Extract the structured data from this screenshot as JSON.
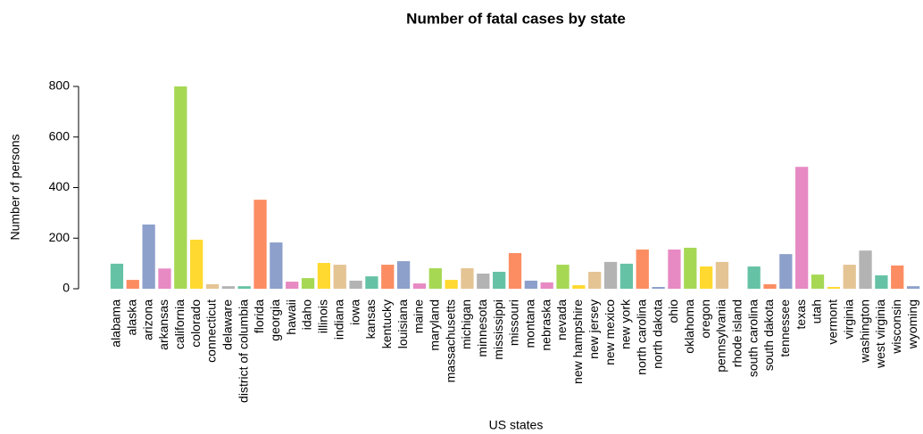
{
  "chart_data": {
    "type": "bar",
    "title": "Number of fatal cases by state",
    "x_label": "US states",
    "y_label": "Number of persons",
    "categories": [
      "alabama",
      "alaska",
      "arizona",
      "arkansas",
      "california",
      "colorado",
      "connecticut",
      "delaware",
      "district of columbia",
      "florida",
      "georgia",
      "hawaii",
      "idaho",
      "illinois",
      "indiana",
      "iowa",
      "kansas",
      "kentucky",
      "louisiana",
      "maine",
      "maryland",
      "massachusetts",
      "michigan",
      "minnesota",
      "mississippi",
      "missouri",
      "montana",
      "nebraska",
      "nevada",
      "new hampshire",
      "new jersey",
      "new mexico",
      "new york",
      "north carolina",
      "north dakota",
      "ohio",
      "oklahoma",
      "oregon",
      "pennsylvania",
      "rhode island",
      "south carolina",
      "south dakota",
      "tennessee",
      "texas",
      "utah",
      "vermont",
      "virginia",
      "washington",
      "west virginia",
      "wisconsin",
      "wyoming"
    ],
    "values": [
      99,
      35,
      254,
      80,
      800,
      194,
      18,
      10,
      10,
      352,
      183,
      28,
      42,
      102,
      95,
      32,
      49,
      95,
      109,
      21,
      81,
      35,
      81,
      60,
      67,
      141,
      32,
      25,
      95,
      14,
      67,
      106,
      99,
      155,
      7,
      155,
      162,
      88,
      106,
      0,
      88,
      18,
      137,
      482,
      56,
      7,
      95,
      151,
      53,
      92,
      10
    ],
    "palette": [
      "#66C2A5",
      "#FC8D62",
      "#8DA0CB",
      "#E78AC3",
      "#A6D854",
      "#FFD92F",
      "#E5C494",
      "#B3B3B3"
    ],
    "ylim": [
      0,
      800
    ],
    "yticks": [
      0,
      200,
      400,
      600,
      800
    ],
    "grid": false
  }
}
